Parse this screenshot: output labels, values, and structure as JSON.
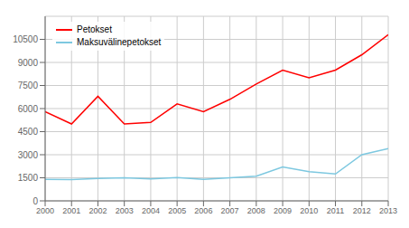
{
  "chart_data": {
    "type": "line",
    "x": [
      2000,
      2001,
      2002,
      2003,
      2004,
      2005,
      2006,
      2007,
      2008,
      2009,
      2010,
      2011,
      2012,
      2013
    ],
    "series": [
      {
        "name": "Petokset",
        "color": "#ff0000",
        "values": [
          5800,
          5000,
          6800,
          5000,
          5100,
          6300,
          5800,
          6600,
          7600,
          8500,
          8000,
          8500,
          9500,
          10800
        ]
      },
      {
        "name": "Maksuvälinepetokset",
        "color": "#7dc8e0",
        "values": [
          1400,
          1380,
          1450,
          1500,
          1430,
          1520,
          1400,
          1500,
          1600,
          2200,
          1900,
          1750,
          3000,
          3400
        ]
      }
    ],
    "xlim": [
      2000,
      2013
    ],
    "xticks": [
      2000,
      2001,
      2002,
      2003,
      2004,
      2005,
      2006,
      2007,
      2008,
      2009,
      2010,
      2011,
      2012,
      2013
    ],
    "ylim": [
      0,
      12000
    ],
    "yticks": [
      0,
      1500,
      3000,
      4500,
      6000,
      7500,
      9000,
      10500
    ],
    "grid": true,
    "legend": "upper left"
  }
}
